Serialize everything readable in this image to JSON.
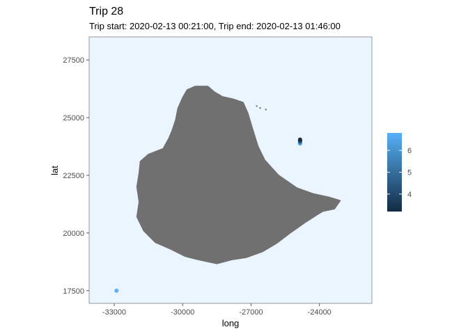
{
  "chart_data": {
    "type": "scatter",
    "title": "Trip 28",
    "subtitle": "Trip start: 2020-02-13 00:21:00, Trip end: 2020-02-13 01:46:00",
    "xlabel": "long",
    "ylabel": "lat",
    "xlim": [
      -34100,
      -21700
    ],
    "ylim": [
      16950,
      28500
    ],
    "x_ticks": [
      -33000,
      -30000,
      -27000,
      -24000
    ],
    "x_tick_labels": [
      "-33000",
      "-30000",
      "-27000",
      "-24000"
    ],
    "y_ticks": [
      17500,
      20000,
      22500,
      25000,
      27500
    ],
    "y_tick_labels": [
      "17500",
      "20000",
      "22500",
      "25000",
      "27500"
    ],
    "grid": false,
    "panel_background": "#ebf5ff",
    "land_color": "#707070",
    "legend_position": "right",
    "color_scale": {
      "min": 3.2,
      "max": 6.8,
      "ticks": [
        4,
        5,
        6
      ],
      "tick_labels": [
        "4",
        "5",
        "6"
      ],
      "low_color": "#132b43",
      "high_color": "#56b1f7"
    },
    "points": [
      {
        "x": -32900,
        "y": 17500,
        "value": 6.8
      },
      {
        "x": -24850,
        "y": 23880,
        "value": 6.7
      },
      {
        "x": -24850,
        "y": 23920,
        "value": 6.0
      },
      {
        "x": -24850,
        "y": 23950,
        "value": 5.2
      },
      {
        "x": -24850,
        "y": 23990,
        "value": 4.4
      },
      {
        "x": -24850,
        "y": 24020,
        "value": 3.7
      },
      {
        "x": -24850,
        "y": 24050,
        "value": 3.3
      }
    ],
    "land_outline": [
      [
        -30300,
        24900
      ],
      [
        -30200,
        25400
      ],
      [
        -30000,
        25850
      ],
      [
        -29800,
        26200
      ],
      [
        -29450,
        26350
      ],
      [
        -28900,
        26350
      ],
      [
        -28600,
        26100
      ],
      [
        -28250,
        25900
      ],
      [
        -27800,
        25800
      ],
      [
        -27350,
        25650
      ],
      [
        -27150,
        25200
      ],
      [
        -26950,
        24550
      ],
      [
        -26700,
        23750
      ],
      [
        -26400,
        23150
      ],
      [
        -25800,
        22500
      ],
      [
        -25000,
        21950
      ],
      [
        -24300,
        21700
      ],
      [
        -23600,
        21550
      ],
      [
        -23100,
        21400
      ],
      [
        -23350,
        21050
      ],
      [
        -23850,
        20950
      ],
      [
        -24100,
        20800
      ],
      [
        -24650,
        20450
      ],
      [
        -25300,
        20000
      ],
      [
        -25900,
        19550
      ],
      [
        -26500,
        19200
      ],
      [
        -27200,
        18950
      ],
      [
        -27850,
        18850
      ],
      [
        -28500,
        18680
      ],
      [
        -29300,
        18850
      ],
      [
        -29900,
        19000
      ],
      [
        -30500,
        19300
      ],
      [
        -31200,
        19600
      ],
      [
        -31700,
        20100
      ],
      [
        -32000,
        20700
      ],
      [
        -31900,
        21350
      ],
      [
        -32000,
        22000
      ],
      [
        -31900,
        22600
      ],
      [
        -31850,
        23100
      ],
      [
        -31500,
        23400
      ],
      [
        -30850,
        23650
      ],
      [
        -30600,
        24100
      ],
      [
        -30450,
        24450
      ],
      [
        -30300,
        24900
      ]
    ],
    "islets": [
      [
        -26750,
        25500
      ],
      [
        -26600,
        25420
      ],
      [
        -26350,
        25350
      ],
      [
        -27050,
        24850
      ],
      [
        -24150,
        21600
      ],
      [
        -24400,
        21150
      ],
      [
        -24000,
        20900
      ]
    ]
  }
}
